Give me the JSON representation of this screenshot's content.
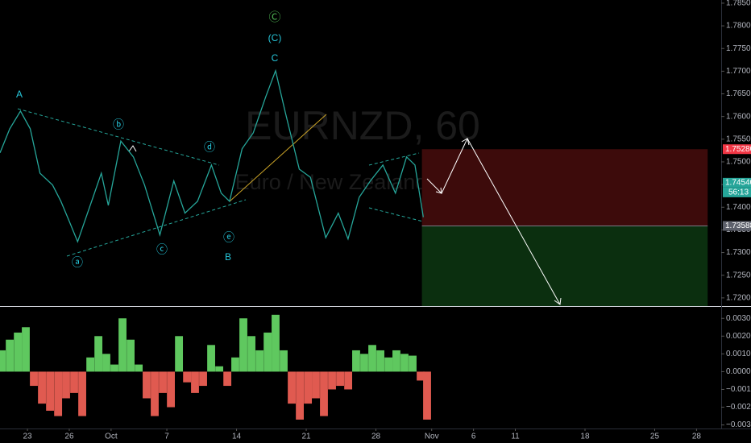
{
  "chart_data": {
    "type": "line",
    "watermark": {
      "symbol": "EURNZD, 60",
      "description": "Euro / New Zealand Dollar"
    },
    "xlim": [
      -1.97,
      49.77
    ],
    "xticks": [
      {
        "value": 0,
        "label": "23"
      },
      {
        "value": 3,
        "label": "26"
      },
      {
        "value": 6,
        "label": "Oct"
      },
      {
        "value": 10,
        "label": "7"
      },
      {
        "value": 15,
        "label": "14"
      },
      {
        "value": 20,
        "label": "21"
      },
      {
        "value": 25,
        "label": "28"
      },
      {
        "value": 29,
        "label": "Nov"
      },
      {
        "value": 32,
        "label": "6"
      },
      {
        "value": 35,
        "label": "11"
      },
      {
        "value": 40,
        "label": "18"
      },
      {
        "value": 45,
        "label": "25"
      },
      {
        "value": 48,
        "label": "28"
      }
    ],
    "ylim": [
      1.7182,
      1.7857
    ],
    "yticks": [
      {
        "value": 1.72,
        "label": "1.72000"
      },
      {
        "value": 1.725,
        "label": "1.72500"
      },
      {
        "value": 1.73,
        "label": "1.73000"
      },
      {
        "value": 1.735,
        "label": "1.73500"
      },
      {
        "value": 1.74,
        "label": "1.74000"
      },
      {
        "value": 1.745,
        "label": "1.74500"
      },
      {
        "value": 1.75,
        "label": "1.75000"
      },
      {
        "value": 1.755,
        "label": "1.75500"
      },
      {
        "value": 1.76,
        "label": "1.76000"
      },
      {
        "value": 1.765,
        "label": "1.76500"
      },
      {
        "value": 1.77,
        "label": "1.77000"
      },
      {
        "value": 1.775,
        "label": "1.77500"
      },
      {
        "value": 1.78,
        "label": "1.78000"
      },
      {
        "value": 1.785,
        "label": "1.78500"
      }
    ],
    "series": [
      {
        "name": "EURNZD",
        "color": "#26a69a",
        "x": [
          -1.97,
          -1.27,
          -0.5,
          0.2,
          0.9,
          1.8,
          2.4,
          3,
          3.6,
          4.4,
          5.3,
          5.8,
          6.7,
          7.6,
          8.4,
          9.5,
          10.5,
          11.3,
          12.2,
          13.2,
          13.9,
          14.5,
          15.4,
          16.2,
          17.1,
          17.8,
          18.5,
          19.5,
          20.3,
          21.4,
          22.3,
          23,
          23.8,
          24.6,
          25.5,
          26.4,
          27.2,
          27.8,
          28.4
        ],
        "values": [
          1.752,
          1.7573,
          1.7612,
          1.7573,
          1.7475,
          1.7449,
          1.7413,
          1.7369,
          1.7324,
          1.7395,
          1.7475,
          1.7404,
          1.7546,
          1.7511,
          1.7449,
          1.7339,
          1.7458,
          1.7387,
          1.7413,
          1.7493,
          1.7431,
          1.7413,
          1.7529,
          1.7564,
          1.7644,
          1.7701,
          1.7609,
          1.7484,
          1.7466,
          1.7333,
          1.7387,
          1.733,
          1.7422,
          1.7458,
          1.7493,
          1.7431,
          1.7511,
          1.7493,
          1.7378
        ]
      }
    ],
    "price_labels": [
      {
        "value": 1.7528,
        "label": "1.75280",
        "color": "#f23645"
      },
      {
        "value": 1.7454,
        "label": "1.74540",
        "color": "#26a69a",
        "countdown": "56:13"
      },
      {
        "value": 1.73588,
        "label": "1.73588",
        "color": "#5d606b"
      }
    ],
    "position": {
      "x": [
        28.3,
        48.8
      ],
      "entry": 1.73588,
      "stop": 1.7528,
      "target": 1.7182,
      "stop_color": "#3d0b0b",
      "target_color": "#0b2f0f"
    },
    "annotations": [
      "Ⓒ",
      "(C)",
      "C",
      "A",
      "ⓑ",
      "ⓓ",
      "ⓐ",
      "ⓒ",
      "ⓔ",
      "B"
    ],
    "oscillator": {
      "type": "histogram",
      "ylim": [
        -0.0032,
        0.0036
      ],
      "yticks": [
        {
          "value": 0.003,
          "label": "0.0030"
        },
        {
          "value": 0.002,
          "label": "0.0020"
        },
        {
          "value": 0.001,
          "label": "0.0010"
        },
        {
          "value": 0,
          "label": "0.0000"
        },
        {
          "value": -0.001,
          "label": "−0.0010"
        },
        {
          "value": -0.002,
          "label": "−0.0020"
        },
        {
          "value": -0.003,
          "label": "−0.0030"
        }
      ],
      "positive_color": "#5fc85f",
      "negative_color": "#e05a50",
      "x": [
        -1.85,
        -1.27,
        -0.69,
        -0.12,
        0.46,
        1.04,
        1.62,
        2.2,
        2.77,
        3.35,
        3.93,
        4.51,
        5.09,
        5.66,
        6.24,
        6.82,
        7.4,
        7.98,
        8.55,
        9.13,
        9.71,
        10.29,
        10.87,
        11.45,
        12.02,
        12.6,
        13.18,
        13.76,
        14.34,
        14.91,
        15.49,
        16.07,
        16.65,
        17.23,
        17.8,
        18.38,
        18.96,
        19.54,
        20.12,
        20.69,
        21.27,
        21.85,
        22.43,
        23.01,
        23.58,
        24.16,
        24.74,
        25.32,
        25.9,
        26.47,
        27.05,
        27.63,
        28.21,
        28.67
      ],
      "values": [
        0.0012,
        0.0018,
        0.0022,
        0.0025,
        -0.0008,
        -0.0018,
        -0.0022,
        -0.0025,
        -0.0015,
        -0.0012,
        -0.0025,
        0.0008,
        0.002,
        0.001,
        0.0004,
        0.003,
        0.0018,
        0.0004,
        -0.0015,
        -0.0025,
        -0.0012,
        -0.002,
        0.002,
        -0.0006,
        -0.0012,
        -0.0008,
        0.0015,
        0.0003,
        -0.0008,
        0.0008,
        0.003,
        0.002,
        0.0012,
        0.0022,
        0.0032,
        0.0012,
        -0.0018,
        -0.0027,
        -0.0018,
        -0.0015,
        -0.0025,
        -0.001,
        -0.0008,
        -0.001,
        0.0012,
        0.001,
        0.0015,
        0.0012,
        0.0008,
        0.0012,
        0.001,
        0.0009,
        -0.0005,
        -0.0027
      ]
    }
  }
}
